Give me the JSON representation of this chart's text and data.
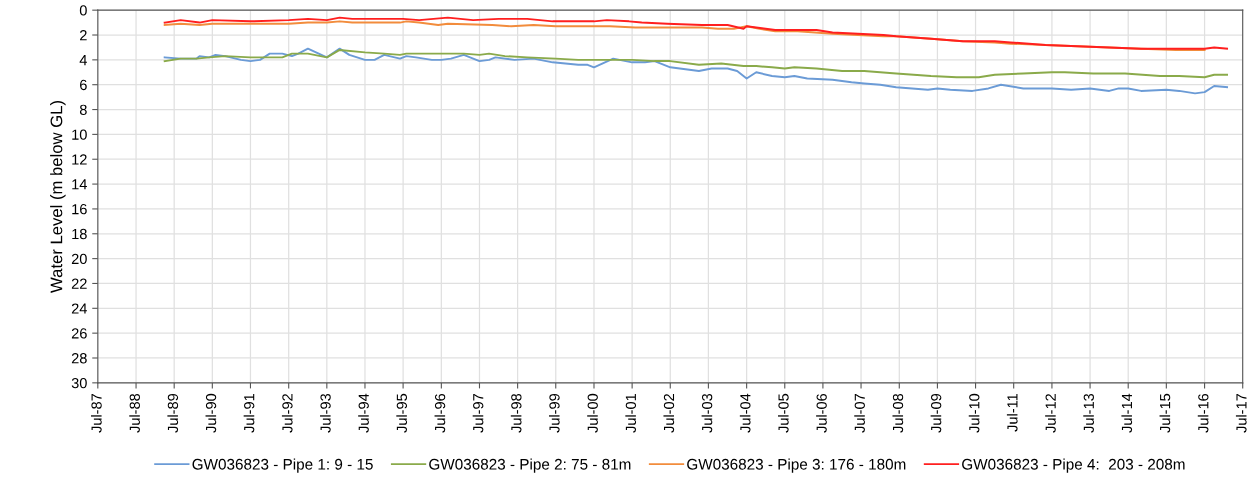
{
  "chart_data": {
    "type": "line",
    "ylabel": "Water Level (m below GL)",
    "xlim": [
      "1987-07",
      "2017-07"
    ],
    "xticks": [
      {
        "value": "1987-07",
        "label": "Jul-87"
      },
      {
        "value": "1988-07",
        "label": "Jul-88"
      },
      {
        "value": "1989-07",
        "label": "Jul-89"
      },
      {
        "value": "1990-07",
        "label": "Jul-90"
      },
      {
        "value": "1991-07",
        "label": "Jul-91"
      },
      {
        "value": "1992-07",
        "label": "Jul-92"
      },
      {
        "value": "1993-07",
        "label": "Jul-93"
      },
      {
        "value": "1994-07",
        "label": "Jul-94"
      },
      {
        "value": "1995-07",
        "label": "Jul-95"
      },
      {
        "value": "1996-07",
        "label": "Jul-96"
      },
      {
        "value": "1997-07",
        "label": "Jul-97"
      },
      {
        "value": "1998-07",
        "label": "Jul-98"
      },
      {
        "value": "1999-07",
        "label": "Jul-99"
      },
      {
        "value": "2000-07",
        "label": "Jul-00"
      },
      {
        "value": "2001-07",
        "label": "Jul-01"
      },
      {
        "value": "2002-07",
        "label": "Jul-02"
      },
      {
        "value": "2003-07",
        "label": "Jul-03"
      },
      {
        "value": "2004-07",
        "label": "Jul-04"
      },
      {
        "value": "2005-07",
        "label": "Jul-05"
      },
      {
        "value": "2006-07",
        "label": "Jul-06"
      },
      {
        "value": "2007-07",
        "label": "Jul-07"
      },
      {
        "value": "2008-07",
        "label": "Jul-08"
      },
      {
        "value": "2009-07",
        "label": "Jul-09"
      },
      {
        "value": "2010-07",
        "label": "Jul-10"
      },
      {
        "value": "2011-07",
        "label": "Jul-11"
      },
      {
        "value": "2012-07",
        "label": "Jul-12"
      },
      {
        "value": "2013-07",
        "label": "Jul-13"
      },
      {
        "value": "2014-07",
        "label": "Jul-14"
      },
      {
        "value": "2015-07",
        "label": "Jul-15"
      },
      {
        "value": "2016-07",
        "label": "Jul-16"
      },
      {
        "value": "2017-07",
        "label": "Jul-17"
      }
    ],
    "ylim": [
      30,
      0
    ],
    "yticks": [
      0,
      2,
      4,
      6,
      8,
      10,
      12,
      14,
      16,
      18,
      20,
      22,
      24,
      26,
      28,
      30
    ],
    "grid": true,
    "legend": "bottom",
    "marker": "none",
    "line_style": "solid",
    "series": [
      {
        "name": "GW036823 - Pipe 1: 9 - 15",
        "color": "#6b9bd6",
        "x": [
          "1989-04",
          "1989-09",
          "1990-02",
          "1990-03",
          "1990-06",
          "1990-08",
          "1990-11",
          "1991-04",
          "1991-07",
          "1991-10",
          "1992-01",
          "1992-05",
          "1992-08",
          "1992-10",
          "1993-01",
          "1993-07",
          "1993-11",
          "1994-02",
          "1994-07",
          "1994-10",
          "1995-01",
          "1995-06",
          "1995-08",
          "1995-11",
          "1996-04",
          "1996-07",
          "1996-10",
          "1997-02",
          "1997-07",
          "1997-10",
          "1997-12",
          "1998-06",
          "1998-12",
          "1999-06",
          "2000-02",
          "2000-05",
          "2000-07",
          "2001-01",
          "2001-07",
          "2001-11",
          "2002-02",
          "2002-07",
          "2003-04",
          "2003-08",
          "2004-01",
          "2004-04",
          "2004-07",
          "2004-10",
          "2005-03",
          "2005-07",
          "2005-10",
          "2006-02",
          "2006-10",
          "2007-04",
          "2007-08",
          "2008-01",
          "2008-06",
          "2008-11",
          "2009-04",
          "2009-07",
          "2009-11",
          "2010-06",
          "2010-11",
          "2011-03",
          "2011-10",
          "2012-07",
          "2013-01",
          "2013-07",
          "2014-01",
          "2014-04",
          "2014-07",
          "2014-11",
          "2015-07",
          "2015-11",
          "2016-04",
          "2016-07",
          "2016-10",
          "2017-02"
        ],
        "values": [
          3.8,
          3.9,
          3.9,
          3.7,
          3.8,
          3.6,
          3.7,
          4.0,
          4.1,
          4.0,
          3.5,
          3.5,
          3.7,
          3.5,
          3.1,
          3.8,
          3.1,
          3.6,
          4.0,
          4.0,
          3.6,
          3.9,
          3.7,
          3.8,
          4.0,
          4.0,
          3.9,
          3.6,
          4.1,
          4.0,
          3.8,
          4.0,
          3.9,
          4.2,
          4.4,
          4.4,
          4.6,
          3.9,
          4.2,
          4.2,
          4.1,
          4.6,
          4.9,
          4.7,
          4.7,
          4.9,
          5.5,
          5.0,
          5.3,
          5.4,
          5.3,
          5.5,
          5.6,
          5.8,
          5.9,
          6.0,
          6.2,
          6.3,
          6.4,
          6.3,
          6.4,
          6.5,
          6.3,
          6.0,
          6.3,
          6.3,
          6.4,
          6.3,
          6.5,
          6.3,
          6.3,
          6.5,
          6.4,
          6.5,
          6.7,
          6.6,
          6.1,
          6.2
        ]
      },
      {
        "name": "GW036823 - Pipe 2: 75 - 81m",
        "color": "#8aaa4a",
        "x": [
          "1989-04",
          "1989-09",
          "1990-02",
          "1990-06",
          "1990-11",
          "1991-07",
          "1992-05",
          "1992-08",
          "1993-01",
          "1993-07",
          "1993-11",
          "1994-07",
          "1995-01",
          "1995-06",
          "1995-08",
          "1996-06",
          "1997-02",
          "1997-07",
          "1997-10",
          "1998-03",
          "1998-10",
          "1999-07",
          "2000-02",
          "2000-08",
          "2001-01",
          "2001-07",
          "2002-02",
          "2002-07",
          "2003-04",
          "2003-11",
          "2004-06",
          "2004-10",
          "2005-03",
          "2005-07",
          "2005-10",
          "2006-05",
          "2007-01",
          "2007-08",
          "2008-06",
          "2009-05",
          "2010-01",
          "2010-08",
          "2011-01",
          "2011-10",
          "2012-07",
          "2012-11",
          "2013-08",
          "2014-06",
          "2015-05",
          "2015-11",
          "2016-07",
          "2016-10",
          "2017-02"
        ],
        "values": [
          4.1,
          3.9,
          3.9,
          3.8,
          3.7,
          3.8,
          3.8,
          3.5,
          3.5,
          3.8,
          3.2,
          3.4,
          3.5,
          3.6,
          3.5,
          3.5,
          3.5,
          3.6,
          3.5,
          3.7,
          3.8,
          3.9,
          4.0,
          4.0,
          4.0,
          4.0,
          4.1,
          4.1,
          4.4,
          4.3,
          4.5,
          4.5,
          4.6,
          4.7,
          4.6,
          4.7,
          4.9,
          4.9,
          5.1,
          5.3,
          5.4,
          5.4,
          5.2,
          5.1,
          5.0,
          5.0,
          5.1,
          5.1,
          5.3,
          5.3,
          5.4,
          5.2,
          5.2
        ]
      },
      {
        "name": "GW036823 - Pipe 3: 176 - 180m",
        "color": "#f28c3c",
        "x": [
          "1989-04",
          "1989-09",
          "1990-03",
          "1990-07",
          "1991-07",
          "1992-07",
          "1993-01",
          "1993-07",
          "1993-11",
          "1994-03",
          "1995-06",
          "1995-08",
          "1995-12",
          "1996-06",
          "1996-09",
          "1997-11",
          "1998-05",
          "1998-12",
          "1999-07",
          "2000-07",
          "2000-12",
          "2001-08",
          "2002-06",
          "2003-05",
          "2003-10",
          "2004-03",
          "2004-07",
          "2004-11",
          "2005-04",
          "2005-11",
          "2006-10",
          "2007-06",
          "2008-02",
          "2008-06",
          "2009-05",
          "2010-03",
          "2011-01",
          "2011-06",
          "2012-05",
          "2013-03",
          "2014-01",
          "2014-11",
          "2015-10",
          "2016-07"
        ],
        "values": [
          1.2,
          1.1,
          1.2,
          1.1,
          1.1,
          1.1,
          1.0,
          1.0,
          0.9,
          1.0,
          1.0,
          0.9,
          1.0,
          1.2,
          1.1,
          1.2,
          1.3,
          1.2,
          1.3,
          1.3,
          1.3,
          1.4,
          1.4,
          1.4,
          1.5,
          1.5,
          1.3,
          1.5,
          1.7,
          1.7,
          1.9,
          2.0,
          2.1,
          2.1,
          2.3,
          2.5,
          2.6,
          2.7,
          2.8,
          2.9,
          3.0,
          3.1,
          3.2,
          3.2
        ]
      },
      {
        "name": "GW036823 - Pipe 4:  203 - 208m",
        "color": "#ff1f1f",
        "x": [
          "1989-04",
          "1989-09",
          "1990-03",
          "1990-07",
          "1991-07",
          "1992-07",
          "1993-01",
          "1993-07",
          "1993-11",
          "1994-03",
          "1995-07",
          "1995-12",
          "1996-09",
          "1997-05",
          "1998-01",
          "1998-10",
          "1999-06",
          "2000-07",
          "2000-11",
          "2001-06",
          "2001-10",
          "2002-06",
          "2003-05",
          "2004-01",
          "2004-06",
          "2004-07",
          "2005-04",
          "2005-11",
          "2006-05",
          "2006-10",
          "2007-06",
          "2008-02",
          "2008-06",
          "2009-05",
          "2010-03",
          "2011-01",
          "2011-06",
          "2012-05",
          "2013-03",
          "2014-01",
          "2014-11",
          "2015-10",
          "2016-07",
          "2016-10",
          "2017-02"
        ],
        "values": [
          1.0,
          0.8,
          1.0,
          0.8,
          0.9,
          0.8,
          0.7,
          0.8,
          0.6,
          0.7,
          0.7,
          0.8,
          0.6,
          0.8,
          0.7,
          0.7,
          0.9,
          0.9,
          0.8,
          0.9,
          1.0,
          1.1,
          1.2,
          1.2,
          1.5,
          1.3,
          1.6,
          1.6,
          1.6,
          1.8,
          1.9,
          2.0,
          2.1,
          2.3,
          2.5,
          2.5,
          2.6,
          2.8,
          2.9,
          3.0,
          3.1,
          3.1,
          3.1,
          3.0,
          3.1
        ]
      }
    ]
  }
}
